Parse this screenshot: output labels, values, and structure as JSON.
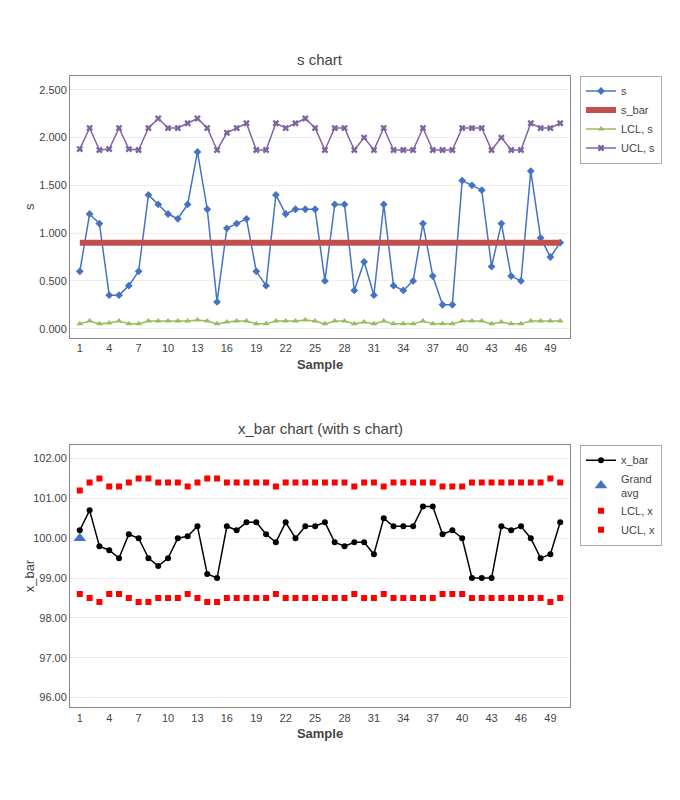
{
  "chart_data": [
    {
      "type": "line",
      "title": "s chart",
      "x_label": "Sample",
      "y_label": "s",
      "x": [
        1,
        2,
        3,
        4,
        5,
        6,
        7,
        8,
        9,
        10,
        11,
        12,
        13,
        14,
        15,
        16,
        17,
        18,
        19,
        20,
        21,
        22,
        23,
        24,
        25,
        26,
        27,
        28,
        29,
        30,
        31,
        32,
        33,
        34,
        35,
        36,
        37,
        38,
        39,
        40,
        41,
        42,
        43,
        44,
        45,
        46,
        47,
        48,
        49,
        50
      ],
      "xlim": [
        0.0,
        51
      ],
      "xticks": [
        1,
        4,
        7,
        10,
        13,
        16,
        19,
        22,
        25,
        28,
        31,
        34,
        37,
        40,
        43,
        46,
        49
      ],
      "ylim": [
        -0.1,
        2.65
      ],
      "yticks": [
        {
          "value": 0.0,
          "label": "0.000"
        },
        {
          "value": 0.5,
          "label": "0.500"
        },
        {
          "value": 1.0,
          "label": "1.000"
        },
        {
          "value": 1.5,
          "label": "1.500"
        },
        {
          "value": 2.0,
          "label": "2.000"
        },
        {
          "value": 2.5,
          "label": "2.500"
        }
      ],
      "grid": "y",
      "legend": "right",
      "series": [
        {
          "name": "s",
          "color": "#4472C4",
          "marker": "diamond",
          "line_style": "solid",
          "values": [
            0.6,
            1.2,
            1.1,
            0.35,
            0.35,
            0.45,
            0.6,
            1.4,
            1.3,
            1.2,
            1.15,
            1.3,
            1.85,
            1.25,
            0.28,
            1.05,
            1.1,
            1.15,
            0.6,
            0.45,
            1.4,
            1.2,
            1.25,
            1.25,
            1.25,
            0.5,
            1.3,
            1.3,
            0.4,
            0.7,
            0.35,
            1.3,
            0.45,
            0.4,
            0.5,
            1.1,
            0.55,
            0.25,
            0.25,
            1.55,
            1.5,
            1.45,
            0.65,
            1.1,
            0.55,
            0.5,
            1.65,
            0.95,
            0.75,
            0.9
          ]
        },
        {
          "name": "s_bar",
          "color": "#C0504D",
          "line_style": "solid",
          "values": [
            0.9,
            0.9,
            0.9,
            0.9,
            0.9,
            0.9,
            0.9,
            0.9,
            0.9,
            0.9,
            0.9,
            0.9,
            0.9,
            0.9,
            0.9,
            0.9,
            0.9,
            0.9,
            0.9,
            0.9,
            0.9,
            0.9,
            0.9,
            0.9,
            0.9,
            0.9,
            0.9,
            0.9,
            0.9,
            0.9,
            0.9,
            0.9,
            0.9,
            0.9,
            0.9,
            0.9,
            0.9,
            0.9,
            0.9,
            0.9,
            0.9,
            0.9,
            0.9,
            0.9,
            0.9,
            0.9,
            0.9,
            0.9,
            0.9,
            0.9
          ]
        },
        {
          "name": "LCL, s",
          "color": "#9BBB59",
          "marker": "triangle-up",
          "line_style": "solid",
          "values": [
            0.05,
            0.08,
            0.05,
            0.06,
            0.08,
            0.05,
            0.05,
            0.08,
            0.08,
            0.08,
            0.08,
            0.08,
            0.09,
            0.08,
            0.05,
            0.07,
            0.08,
            0.08,
            0.05,
            0.05,
            0.08,
            0.08,
            0.08,
            0.09,
            0.08,
            0.05,
            0.08,
            0.08,
            0.05,
            0.07,
            0.05,
            0.08,
            0.05,
            0.05,
            0.05,
            0.08,
            0.05,
            0.05,
            0.05,
            0.08,
            0.08,
            0.08,
            0.05,
            0.07,
            0.05,
            0.05,
            0.08,
            0.08,
            0.08,
            0.08
          ]
        },
        {
          "name": "UCL, s",
          "color": "#8064A2",
          "marker": "x",
          "line_style": "solid",
          "values": [
            1.88,
            2.1,
            1.87,
            1.88,
            2.1,
            1.88,
            1.87,
            2.1,
            2.2,
            2.1,
            2.1,
            2.15,
            2.2,
            2.1,
            1.87,
            2.05,
            2.1,
            2.15,
            1.87,
            1.87,
            2.15,
            2.1,
            2.15,
            2.2,
            2.1,
            1.87,
            2.1,
            2.1,
            1.87,
            2.0,
            1.87,
            2.1,
            1.87,
            1.87,
            1.87,
            2.1,
            1.87,
            1.87,
            1.87,
            2.1,
            2.1,
            2.1,
            1.87,
            2.0,
            1.87,
            1.87,
            2.15,
            2.1,
            2.1,
            2.15
          ]
        }
      ]
    },
    {
      "type": "line",
      "title": "x_bar chart (with s chart)",
      "x_label": "Sample",
      "y_label": "x_bar",
      "x": [
        1,
        2,
        3,
        4,
        5,
        6,
        7,
        8,
        9,
        10,
        11,
        12,
        13,
        14,
        15,
        16,
        17,
        18,
        19,
        20,
        21,
        22,
        23,
        24,
        25,
        26,
        27,
        28,
        29,
        30,
        31,
        32,
        33,
        34,
        35,
        36,
        37,
        38,
        39,
        40,
        41,
        42,
        43,
        44,
        45,
        46,
        47,
        48,
        49,
        50
      ],
      "xlim": [
        0.0,
        51
      ],
      "xticks": [
        1,
        4,
        7,
        10,
        13,
        16,
        19,
        22,
        25,
        28,
        31,
        34,
        37,
        40,
        43,
        46,
        49
      ],
      "ylim": [
        95.75,
        102.35
      ],
      "yticks": [
        {
          "value": 96.0,
          "label": "96.00"
        },
        {
          "value": 97.0,
          "label": "97.00"
        },
        {
          "value": 98.0,
          "label": "98.00"
        },
        {
          "value": 99.0,
          "label": "99.00"
        },
        {
          "value": 100.0,
          "label": "100.00"
        },
        {
          "value": 101.0,
          "label": "101.00"
        },
        {
          "value": 102.0,
          "label": "102.00"
        }
      ],
      "grid": "y",
      "legend": "right",
      "series": [
        {
          "name": "x_bar",
          "color": "#000000",
          "marker": "circle",
          "line_style": "solid",
          "values": [
            100.2,
            100.7,
            99.8,
            99.7,
            99.5,
            100.1,
            100.0,
            99.5,
            99.3,
            99.5,
            100.0,
            100.05,
            100.3,
            99.1,
            99.0,
            100.3,
            100.2,
            100.4,
            100.4,
            100.1,
            99.9,
            100.4,
            100.0,
            100.3,
            100.3,
            100.4,
            99.9,
            99.8,
            99.9,
            99.9,
            99.6,
            100.5,
            100.3,
            100.3,
            100.3,
            100.8,
            100.8,
            100.1,
            100.2,
            100.0,
            99.0,
            99.0,
            99.0,
            100.3,
            100.2,
            100.3,
            100.0,
            99.5,
            99.6,
            100.4
          ]
        },
        {
          "name": "Grand\navg",
          "color": "#4472C4",
          "marker": "triangle-up",
          "line_style": "none",
          "x": [
            1
          ],
          "values": [
            100.0
          ]
        },
        {
          "name": "LCL, x",
          "color": "#FF0000",
          "marker": "square",
          "line_style": "none",
          "values": [
            98.6,
            98.5,
            98.4,
            98.6,
            98.6,
            98.5,
            98.4,
            98.4,
            98.5,
            98.5,
            98.5,
            98.6,
            98.5,
            98.4,
            98.4,
            98.5,
            98.5,
            98.5,
            98.5,
            98.5,
            98.6,
            98.5,
            98.5,
            98.5,
            98.5,
            98.5,
            98.5,
            98.5,
            98.6,
            98.5,
            98.5,
            98.6,
            98.5,
            98.5,
            98.5,
            98.5,
            98.5,
            98.6,
            98.6,
            98.6,
            98.5,
            98.5,
            98.5,
            98.5,
            98.5,
            98.5,
            98.5,
            98.5,
            98.4,
            98.5
          ]
        },
        {
          "name": "UCL, x",
          "color": "#FF0000",
          "marker": "square",
          "line_style": "none",
          "values": [
            101.2,
            101.4,
            101.5,
            101.3,
            101.3,
            101.4,
            101.5,
            101.5,
            101.4,
            101.4,
            101.4,
            101.3,
            101.4,
            101.5,
            101.5,
            101.4,
            101.4,
            101.4,
            101.4,
            101.4,
            101.3,
            101.4,
            101.4,
            101.4,
            101.4,
            101.4,
            101.4,
            101.4,
            101.3,
            101.4,
            101.4,
            101.3,
            101.4,
            101.4,
            101.4,
            101.4,
            101.4,
            101.3,
            101.3,
            101.3,
            101.4,
            101.4,
            101.4,
            101.4,
            101.4,
            101.4,
            101.4,
            101.4,
            101.5,
            101.4
          ]
        }
      ]
    }
  ]
}
